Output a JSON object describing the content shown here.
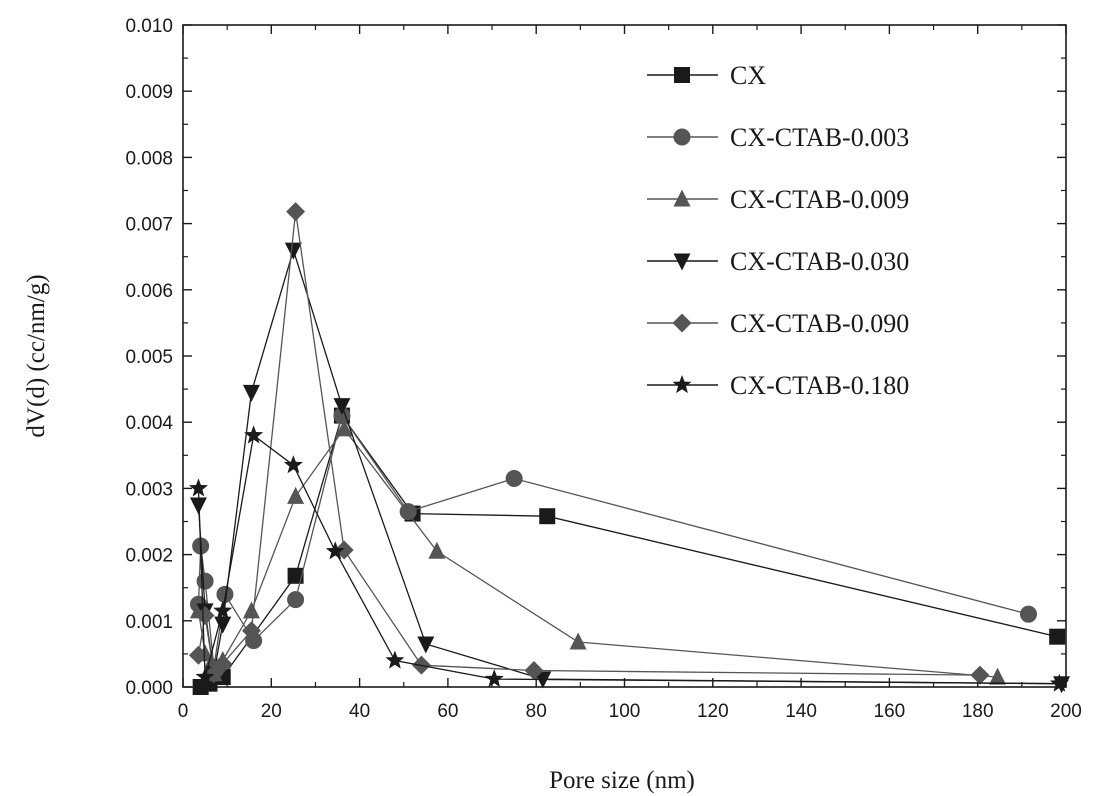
{
  "chart_data": {
    "type": "line",
    "title": "",
    "xlabel": "Pore size (nm)",
    "ylabel": "dV(d) (cc/nm/g)",
    "xlim": [
      0,
      200
    ],
    "ylim": [
      0,
      0.01
    ],
    "x_ticks": [
      "0",
      "20",
      "40",
      "60",
      "80",
      "100",
      "120",
      "140",
      "160",
      "180",
      "200"
    ],
    "y_ticks": [
      "0.000",
      "0.001",
      "0.002",
      "0.003",
      "0.004",
      "0.005",
      "0.006",
      "0.007",
      "0.008",
      "0.009",
      "0.010"
    ],
    "grid": false,
    "legend_position": "top-right",
    "series": [
      {
        "name": "CX",
        "marker": "square",
        "color": "#1a1a1a",
        "points": [
          [
            4,
            0.0
          ],
          [
            6,
            5e-05
          ],
          [
            9,
            0.00015
          ],
          [
            25.5,
            0.00168
          ],
          [
            36,
            0.0041
          ],
          [
            52,
            0.00262
          ],
          [
            82.5,
            0.00258
          ],
          [
            198,
            0.00076
          ]
        ]
      },
      {
        "name": "CX-CTAB-0.003",
        "marker": "circle",
        "color": "#555555",
        "points": [
          [
            3.5,
            0.00125
          ],
          [
            4,
            0.00213
          ],
          [
            5,
            0.0016
          ],
          [
            7,
            0.0003
          ],
          [
            9.5,
            0.0014
          ],
          [
            16,
            0.0007
          ],
          [
            25.5,
            0.00132
          ],
          [
            36,
            0.0041
          ],
          [
            51,
            0.00265
          ],
          [
            75,
            0.00315
          ],
          [
            191.5,
            0.0011
          ]
        ]
      },
      {
        "name": "CX-CTAB-0.009",
        "marker": "triangle-up",
        "color": "#555555",
        "points": [
          [
            3.5,
            0.00115
          ],
          [
            5,
            0.0005
          ],
          [
            7,
            0.0002
          ],
          [
            9,
            0.0004
          ],
          [
            15.5,
            0.00115
          ],
          [
            25.5,
            0.00288
          ],
          [
            36.5,
            0.0039
          ],
          [
            57.5,
            0.00205
          ],
          [
            89.5,
            0.00068
          ],
          [
            184.5,
            0.00015
          ]
        ]
      },
      {
        "name": "CX-CTAB-0.030",
        "marker": "triangle-down",
        "color": "#1a1a1a",
        "points": [
          [
            3.5,
            0.00275
          ],
          [
            5,
            0.00115
          ],
          [
            7,
            0.0002
          ],
          [
            9,
            0.00095
          ],
          [
            15.5,
            0.00445
          ],
          [
            25,
            0.0066
          ],
          [
            36,
            0.00425
          ],
          [
            55,
            0.00065
          ],
          [
            81.5,
            0.00012
          ],
          [
            199,
            5e-05
          ]
        ]
      },
      {
        "name": "CX-CTAB-0.090",
        "marker": "diamond",
        "color": "#555555",
        "points": [
          [
            3.5,
            0.00048
          ],
          [
            5,
            0.00108
          ],
          [
            7,
            0.0002
          ],
          [
            9,
            0.00035
          ],
          [
            15.5,
            0.00085
          ],
          [
            25.5,
            0.00718
          ],
          [
            36.5,
            0.00207
          ],
          [
            54,
            0.00033
          ],
          [
            79.5,
            0.00025
          ],
          [
            180.5,
            0.00018
          ]
        ]
      },
      {
        "name": "CX-CTAB-0.180",
        "marker": "star",
        "color": "#1a1a1a",
        "points": [
          [
            3.5,
            0.003
          ],
          [
            5,
            0.00015
          ],
          [
            9,
            0.00115
          ],
          [
            16,
            0.0038
          ],
          [
            25,
            0.00335
          ],
          [
            34.5,
            0.00205
          ],
          [
            48,
            0.0004
          ],
          [
            70.5,
            0.00012
          ],
          [
            198.5,
            5e-05
          ]
        ]
      }
    ]
  }
}
